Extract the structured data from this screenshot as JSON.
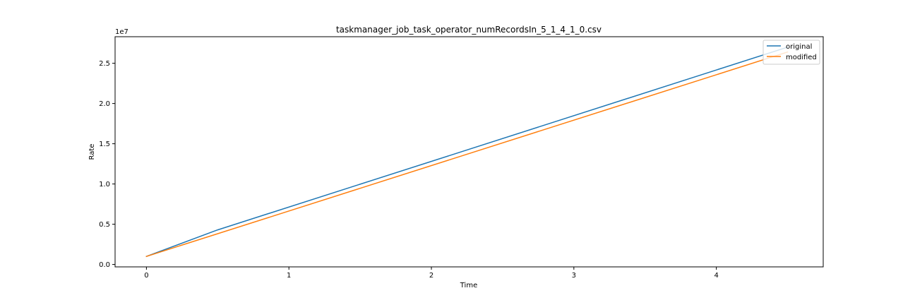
{
  "chart_data": {
    "type": "line",
    "title": "taskmanager_job_task_operator_numRecordsIn_5_1_4_1_0.csv",
    "xlabel": "Time",
    "ylabel": "Rate",
    "y_offset_label": "1e7",
    "xlim": [
      -0.22,
      4.75
    ],
    "ylim": [
      -0.3,
      28.3
    ],
    "y_scale_note": "values in units of 1e7 (plotted as millions x 10)",
    "x_ticks": [
      0,
      1,
      2,
      3,
      4
    ],
    "y_ticks": [
      0.0,
      0.5,
      1.0,
      1.5,
      2.0,
      2.5
    ],
    "y_tick_labels": [
      "0.0",
      "0.5",
      "1.0",
      "1.5",
      "2.0",
      "2.5"
    ],
    "x_tick_labels": [
      "0",
      "1",
      "2",
      "3",
      "4"
    ],
    "legend_position": "top-right",
    "series": [
      {
        "name": "original",
        "color": "#1f77b4",
        "x": [
          0,
          0.5,
          4.5
        ],
        "y": [
          1.0,
          4.3,
          27.0
        ]
      },
      {
        "name": "modified",
        "color": "#ff7f0e",
        "x": [
          0,
          4.5
        ],
        "y": [
          1.0,
          26.4
        ]
      }
    ]
  }
}
